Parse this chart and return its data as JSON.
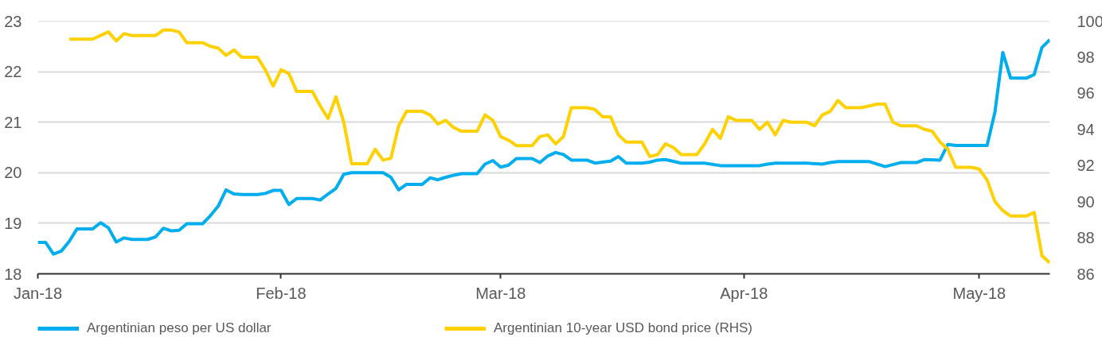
{
  "chart_data": {
    "type": "line",
    "xlim": [
      "2018-01-01",
      "2018-05-10"
    ],
    "xticks": [
      {
        "value": "2018-01-01",
        "label": "Jan-18"
      },
      {
        "value": "2018-02-01",
        "label": "Feb-18"
      },
      {
        "value": "2018-03-01",
        "label": "Mar-18"
      },
      {
        "value": "2018-04-01",
        "label": "Apr-18"
      },
      {
        "value": "2018-05-01",
        "label": "May-18"
      }
    ],
    "ylim": [
      18,
      23
    ],
    "yticks": [
      18,
      19,
      20,
      21,
      22,
      23
    ],
    "y2lim": [
      86,
      100
    ],
    "y2ticks": [
      86,
      88,
      90,
      92,
      94,
      96,
      98,
      100
    ],
    "grid": "y",
    "legend": "bottom",
    "series": [
      {
        "name": "Argentinian peso per US dollar",
        "color": "#00aeef",
        "x": [
          "2018-01-01",
          "2018-01-02",
          "2018-01-03",
          "2018-01-04",
          "2018-01-05",
          "2018-01-06",
          "2018-01-08",
          "2018-01-09",
          "2018-01-10",
          "2018-01-11",
          "2018-01-12",
          "2018-01-13",
          "2018-01-15",
          "2018-01-16",
          "2018-01-17",
          "2018-01-18",
          "2018-01-19",
          "2018-01-20",
          "2018-01-22",
          "2018-01-23",
          "2018-01-24",
          "2018-01-25",
          "2018-01-26",
          "2018-01-27",
          "2018-01-29",
          "2018-01-30",
          "2018-01-31",
          "2018-02-01",
          "2018-02-02",
          "2018-02-03",
          "2018-02-05",
          "2018-02-06",
          "2018-02-07",
          "2018-02-08",
          "2018-02-09",
          "2018-02-10",
          "2018-02-14",
          "2018-02-15",
          "2018-02-16",
          "2018-02-17",
          "2018-02-19",
          "2018-02-20",
          "2018-02-21",
          "2018-02-22",
          "2018-02-23",
          "2018-02-24",
          "2018-02-26",
          "2018-02-27",
          "2018-02-28",
          "2018-03-01",
          "2018-03-02",
          "2018-03-03",
          "2018-03-05",
          "2018-03-06",
          "2018-03-07",
          "2018-03-08",
          "2018-03-09",
          "2018-03-10",
          "2018-03-12",
          "2018-03-13",
          "2018-03-15",
          "2018-03-16",
          "2018-03-17",
          "2018-03-19",
          "2018-03-20",
          "2018-03-21",
          "2018-03-22",
          "2018-03-24",
          "2018-03-27",
          "2018-03-29",
          "2018-04-03",
          "2018-04-04",
          "2018-04-05",
          "2018-04-06",
          "2018-04-09",
          "2018-04-11",
          "2018-04-12",
          "2018-04-13",
          "2018-04-17",
          "2018-04-19",
          "2018-04-21",
          "2018-04-23",
          "2018-04-24",
          "2018-04-26",
          "2018-04-27",
          "2018-04-28",
          "2018-05-02",
          "2018-05-03",
          "2018-05-04",
          "2018-05-05",
          "2018-05-07",
          "2018-05-08",
          "2018-05-09",
          "2018-05-10"
        ],
        "values": [
          18.62,
          18.62,
          18.39,
          18.45,
          18.64,
          18.89,
          18.89,
          19.01,
          18.91,
          18.63,
          18.71,
          18.68,
          18.68,
          18.73,
          18.9,
          18.85,
          18.86,
          18.99,
          18.99,
          19.15,
          19.34,
          19.66,
          19.58,
          19.57,
          19.57,
          19.59,
          19.65,
          19.65,
          19.37,
          19.49,
          19.49,
          19.46,
          19.58,
          19.69,
          19.97,
          20.0,
          20.0,
          19.91,
          19.66,
          19.77,
          19.77,
          19.9,
          19.86,
          19.91,
          19.95,
          19.98,
          19.98,
          20.17,
          20.24,
          20.11,
          20.15,
          20.28,
          20.28,
          20.2,
          20.33,
          20.4,
          20.36,
          20.25,
          20.25,
          20.19,
          20.23,
          20.32,
          20.19,
          20.19,
          20.21,
          20.25,
          20.26,
          20.19,
          20.19,
          20.14,
          20.14,
          20.17,
          20.19,
          20.19,
          20.19,
          20.17,
          20.2,
          20.22,
          20.22,
          20.12,
          20.2,
          20.2,
          20.26,
          20.25,
          20.56,
          20.54,
          20.54,
          21.2,
          22.38,
          21.87,
          21.87,
          21.94,
          22.48,
          22.63
        ]
      },
      {
        "name": "Argentinian 10-year USD bond price (RHS)",
        "color": "#ffd100",
        "axis": "y2",
        "x": [
          "2018-01-05",
          "2018-01-08",
          "2018-01-09",
          "2018-01-10",
          "2018-01-11",
          "2018-01-12",
          "2018-01-13",
          "2018-01-15",
          "2018-01-16",
          "2018-01-17",
          "2018-01-18",
          "2018-01-19",
          "2018-01-20",
          "2018-01-22",
          "2018-01-23",
          "2018-01-24",
          "2018-01-25",
          "2018-01-26",
          "2018-01-27",
          "2018-01-29",
          "2018-01-30",
          "2018-01-31",
          "2018-02-01",
          "2018-02-02",
          "2018-02-03",
          "2018-02-05",
          "2018-02-06",
          "2018-02-07",
          "2018-02-08",
          "2018-02-09",
          "2018-02-10",
          "2018-02-12",
          "2018-02-13",
          "2018-02-14",
          "2018-02-15",
          "2018-02-16",
          "2018-02-17",
          "2018-02-19",
          "2018-02-20",
          "2018-02-21",
          "2018-02-22",
          "2018-02-23",
          "2018-02-24",
          "2018-02-26",
          "2018-02-27",
          "2018-02-28",
          "2018-03-01",
          "2018-03-02",
          "2018-03-03",
          "2018-03-05",
          "2018-03-06",
          "2018-03-07",
          "2018-03-08",
          "2018-03-09",
          "2018-03-10",
          "2018-03-12",
          "2018-03-13",
          "2018-03-14",
          "2018-03-15",
          "2018-03-16",
          "2018-03-17",
          "2018-03-19",
          "2018-03-20",
          "2018-03-21",
          "2018-03-22",
          "2018-03-23",
          "2018-03-24",
          "2018-03-26",
          "2018-03-27",
          "2018-03-28",
          "2018-03-29",
          "2018-03-30",
          "2018-03-31",
          "2018-04-02",
          "2018-04-03",
          "2018-04-04",
          "2018-04-05",
          "2018-04-06",
          "2018-04-07",
          "2018-04-09",
          "2018-04-10",
          "2018-04-11",
          "2018-04-12",
          "2018-04-13",
          "2018-04-14",
          "2018-04-16",
          "2018-04-17",
          "2018-04-18",
          "2018-04-19",
          "2018-04-20",
          "2018-04-21",
          "2018-04-23",
          "2018-04-24",
          "2018-04-25",
          "2018-04-26",
          "2018-04-27",
          "2018-04-28",
          "2018-04-30",
          "2018-05-01",
          "2018-05-02",
          "2018-05-03",
          "2018-05-04",
          "2018-05-05",
          "2018-05-07",
          "2018-05-08",
          "2018-05-09",
          "2018-05-10"
        ],
        "values": [
          99.0,
          99.0,
          99.2,
          99.4,
          98.9,
          99.3,
          99.2,
          99.2,
          99.2,
          99.5,
          99.5,
          99.4,
          98.8,
          98.8,
          98.6,
          98.5,
          98.1,
          98.4,
          98.0,
          98.0,
          97.3,
          96.4,
          97.3,
          97.1,
          96.1,
          96.1,
          95.3,
          94.6,
          95.8,
          94.4,
          92.1,
          92.1,
          92.9,
          92.3,
          92.4,
          94.2,
          95.0,
          95.0,
          94.8,
          94.3,
          94.5,
          94.1,
          93.9,
          93.9,
          94.8,
          94.5,
          93.6,
          93.4,
          93.1,
          93.1,
          93.6,
          93.7,
          93.2,
          93.6,
          95.2,
          95.2,
          95.1,
          94.7,
          94.7,
          93.7,
          93.3,
          93.3,
          92.5,
          92.6,
          93.2,
          93.0,
          92.6,
          92.6,
          93.2,
          94.0,
          93.5,
          94.7,
          94.5,
          94.5,
          94.0,
          94.4,
          93.7,
          94.5,
          94.4,
          94.4,
          94.2,
          94.8,
          95.0,
          95.6,
          95.2,
          95.2,
          95.3,
          95.4,
          95.4,
          94.4,
          94.2,
          94.2,
          94.0,
          93.9,
          93.3,
          92.9,
          91.9,
          91.9,
          91.8,
          91.2,
          90.0,
          89.5,
          89.2,
          89.2,
          89.4,
          87.0,
          86.6
        ]
      }
    ]
  }
}
